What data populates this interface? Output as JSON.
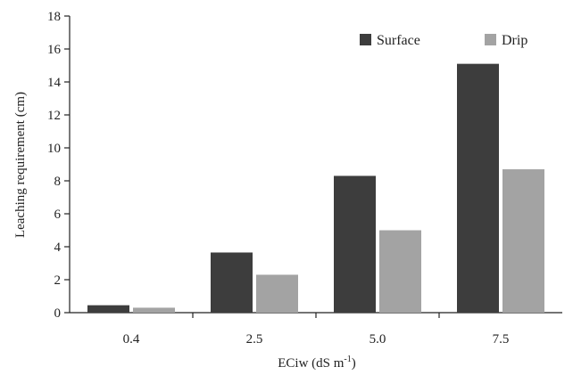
{
  "chart_data": {
    "type": "bar",
    "categories": [
      "0.4",
      "2.5",
      "5.0",
      "7.5"
    ],
    "series": [
      {
        "name": "Surface",
        "values": [
          0.45,
          3.65,
          8.3,
          15.1
        ],
        "color": "#3d3d3d"
      },
      {
        "name": "Drip",
        "values": [
          0.3,
          2.3,
          5.0,
          8.7
        ],
        "color": "#a3a3a3"
      }
    ],
    "title": "",
    "xlabel_main": "ECiw (dS m",
    "xlabel_sup": "-1",
    "xlabel_close": ")",
    "ylabel": "Leaching requirement (cm)",
    "ylim": [
      0,
      18
    ],
    "yticks": [
      "0",
      "2",
      "4",
      "6",
      "8",
      "10",
      "12",
      "14",
      "16",
      "18"
    ],
    "grid": false,
    "legend_position": "top-right"
  }
}
